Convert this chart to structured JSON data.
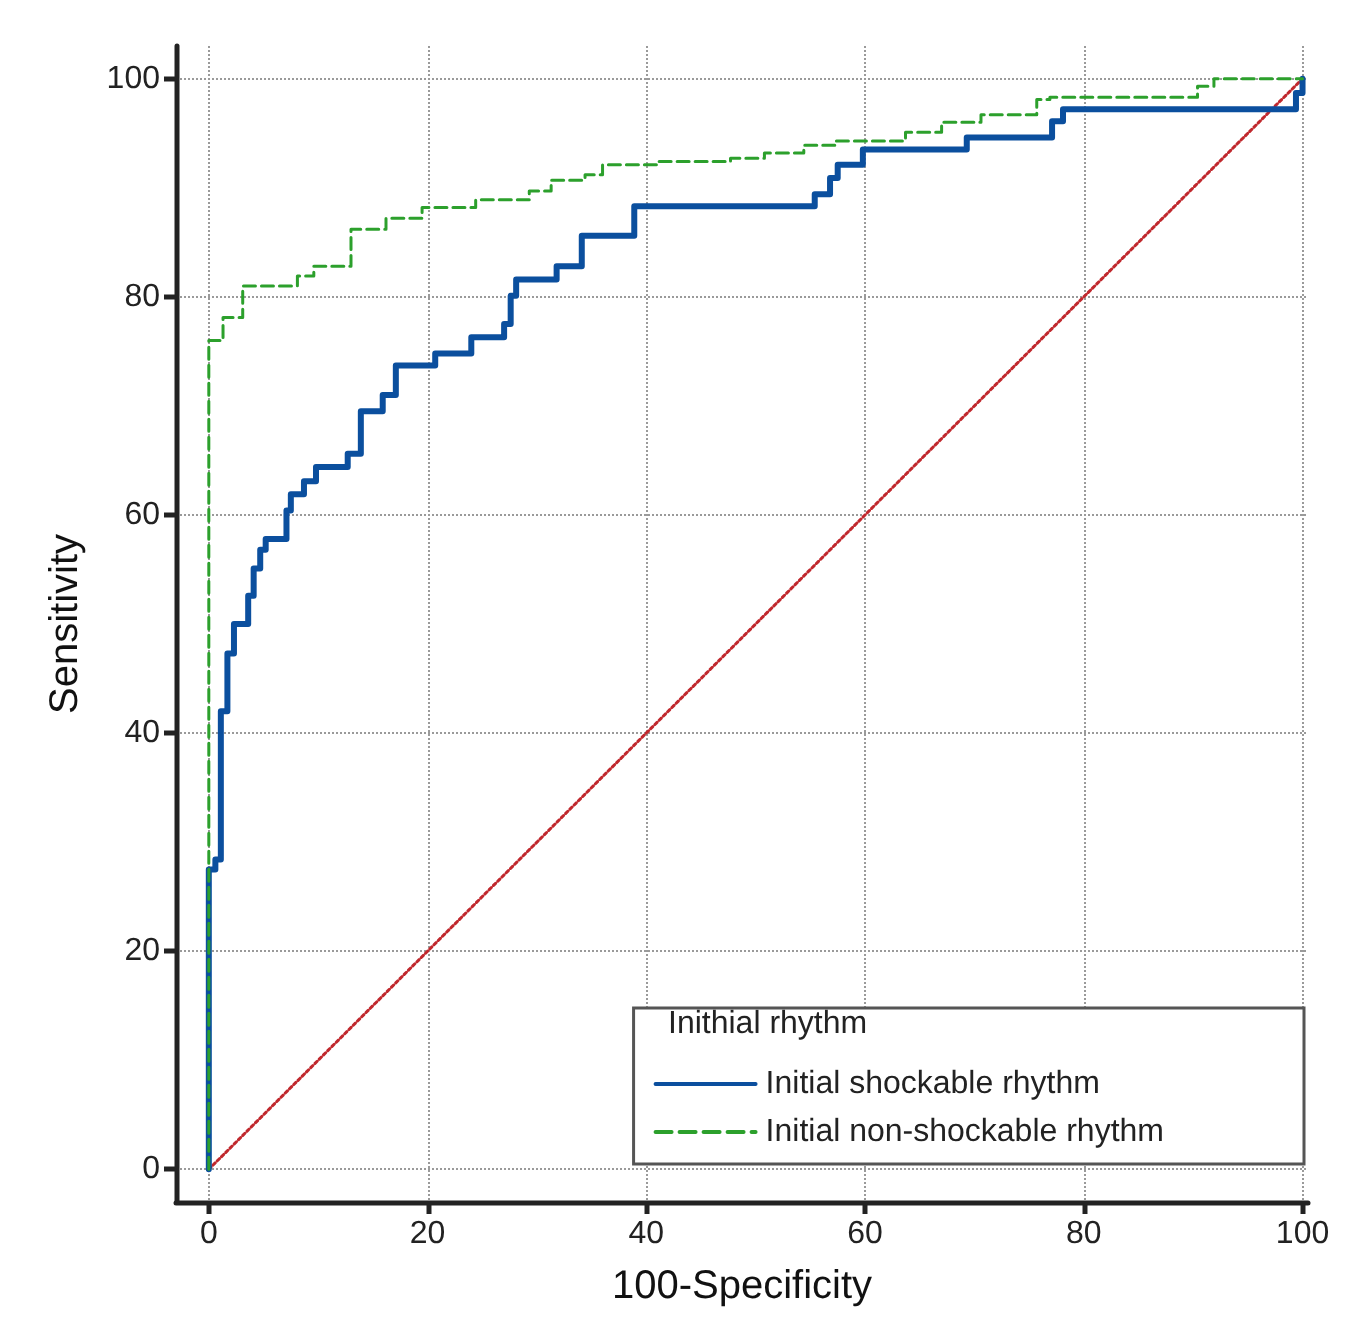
{
  "chart_data": {
    "type": "step",
    "xlabel": "100-Specificity",
    "ylabel": "Sensitivity",
    "legend_title": "Inithial rhythm",
    "series": [
      {
        "name": "Initial shockable rhythm",
        "color": "#0b4f9e",
        "line_style": "solid",
        "x": [
          0,
          0,
          0.6,
          1.1,
          1.7,
          2.3,
          3.6,
          4.1,
          4.7,
          5.2,
          7.1,
          7.5,
          8.7,
          9.8,
          12.7,
          13.9,
          15.9,
          17.1,
          20.7,
          24,
          27,
          27.6,
          28.1,
          31.8,
          34.1,
          38.9,
          55.4,
          56.8,
          57.5,
          59.8,
          69.3,
          77.1,
          78.1,
          99.4,
          100
        ],
        "values": [
          0,
          27.5,
          28.4,
          42,
          47.3,
          50,
          52.6,
          55.1,
          56.8,
          57.8,
          60.4,
          61.9,
          63.1,
          64.4,
          65.6,
          69.5,
          71,
          73.7,
          74.8,
          76.3,
          77.5,
          80.1,
          81.6,
          82.8,
          85.6,
          88.3,
          89.4,
          90.9,
          92.1,
          93.5,
          94.6,
          96.1,
          97.2,
          98.7,
          100
        ]
      },
      {
        "name": "Initial non-shockable rhythm",
        "color": "#2ca02c",
        "line_style": "dashed",
        "x": [
          0,
          0,
          1.3,
          3.1,
          8.1,
          9.6,
          13,
          16.2,
          19.5,
          24.4,
          29.3,
          31.3,
          34.4,
          36,
          41.1,
          47.7,
          50.8,
          54.4,
          57.3,
          63.7,
          67,
          70.6,
          75.7,
          76.9,
          90.4,
          91.9,
          100
        ],
        "values": [
          0,
          76,
          78.1,
          81,
          81.9,
          82.8,
          86.2,
          87.2,
          88.2,
          88.9,
          89.7,
          90.7,
          91.2,
          92.1,
          92.4,
          92.7,
          93.2,
          93.9,
          94.3,
          95.1,
          96,
          96.7,
          98.1,
          98.3,
          99.3,
          100,
          100
        ]
      },
      {
        "type": "line",
        "color": "#c0282d",
        "line_style": "dotted",
        "x": [
          0,
          100
        ],
        "values": [
          0,
          100
        ]
      }
    ],
    "xlim": [
      -3,
      100.5
    ],
    "ylim": [
      -3,
      103
    ],
    "xticks": [
      0,
      20,
      40,
      60,
      80,
      100
    ],
    "yticks": [
      0,
      20,
      40,
      60,
      80,
      100
    ],
    "grid": true,
    "legend": "bottom right",
    "marker": "none"
  }
}
